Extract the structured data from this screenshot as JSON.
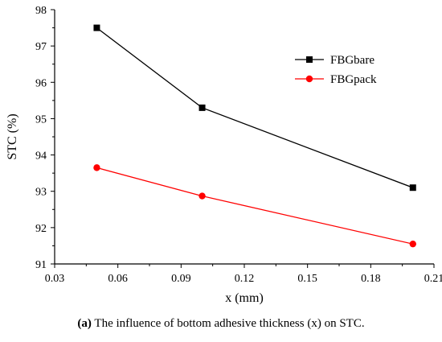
{
  "chart_data": {
    "type": "line",
    "x": [
      0.05,
      0.1,
      0.2
    ],
    "series": [
      {
        "name": "FBGbare",
        "values": [
          97.5,
          95.3,
          93.1
        ],
        "color": "#000000",
        "marker": "square"
      },
      {
        "name": "FBGpack",
        "values": [
          93.65,
          92.87,
          91.55
        ],
        "color": "#ff0000",
        "marker": "circle"
      }
    ],
    "xlabel": "x (mm)",
    "ylabel": "STC (%)",
    "xlim": [
      0.03,
      0.21
    ],
    "ylim": [
      91,
      98
    ],
    "xticks": [
      "0.03",
      "0.06",
      "0.09",
      "0.12",
      "0.15",
      "0.18",
      "0.21"
    ],
    "yticks": [
      "91",
      "92",
      "93",
      "94",
      "95",
      "96",
      "97",
      "98"
    ],
    "grid": false,
    "legend_position": "top-right"
  },
  "caption": {
    "label": "(a)",
    "text": " The influence of bottom adhesive thickness (x) on STC."
  }
}
